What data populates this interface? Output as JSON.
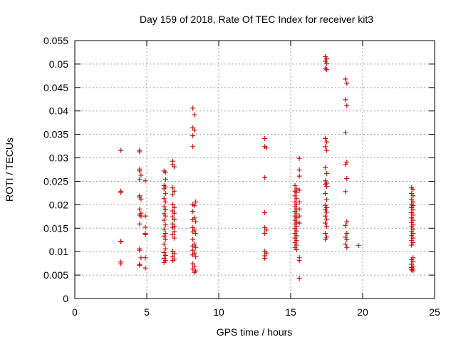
{
  "chart_data": {
    "type": "scatter",
    "title": "Day 159 of 2018, Rate Of TEC Index for receiver kit3",
    "xlabel": "GPS time / hours",
    "ylabel": "ROTI / TECUs",
    "xlim": [
      0,
      25
    ],
    "ylim": [
      0,
      0.055
    ],
    "xticks": [
      0,
      5,
      10,
      15,
      20,
      25
    ],
    "xtick_labels": [
      "0",
      "5",
      "10",
      "15",
      "20",
      "25"
    ],
    "yticks": [
      0,
      0.005,
      0.01,
      0.015,
      0.02,
      0.025,
      0.03,
      0.035,
      0.04,
      0.045,
      0.05,
      0.055
    ],
    "ytick_labels": [
      "0",
      "0.005",
      "0.01",
      "0.015",
      "0.02",
      "0.025",
      "0.03",
      "0.035",
      "0.04",
      "0.045",
      "0.05",
      "0.055"
    ],
    "grid": true,
    "marker": "+",
    "marker_color": "#cc0000",
    "series": [
      {
        "name": "kit3",
        "points": [
          [
            3.2,
            0.0316
          ],
          [
            3.2,
            0.0229
          ],
          [
            3.2,
            0.0226
          ],
          [
            3.2,
            0.0122
          ],
          [
            3.2,
            0.0121
          ],
          [
            3.2,
            0.0078
          ],
          [
            3.2,
            0.0074
          ],
          [
            4.5,
            0.0316
          ],
          [
            4.5,
            0.0313
          ],
          [
            4.5,
            0.0276
          ],
          [
            4.5,
            0.0272
          ],
          [
            4.6,
            0.0263
          ],
          [
            4.5,
            0.0254
          ],
          [
            4.5,
            0.0219
          ],
          [
            4.5,
            0.0216
          ],
          [
            4.6,
            0.0212
          ],
          [
            4.5,
            0.0191
          ],
          [
            4.6,
            0.0182
          ],
          [
            4.5,
            0.0178
          ],
          [
            4.6,
            0.0176
          ],
          [
            4.5,
            0.0159
          ],
          [
            4.5,
            0.0106
          ],
          [
            4.5,
            0.0103
          ],
          [
            4.6,
            0.0087
          ],
          [
            4.5,
            0.0073
          ],
          [
            4.5,
            0.0071
          ],
          [
            4.9,
            0.0251
          ],
          [
            4.9,
            0.0176
          ],
          [
            4.9,
            0.0152
          ],
          [
            4.9,
            0.0139
          ],
          [
            4.9,
            0.0136
          ],
          [
            4.9,
            0.0087
          ],
          [
            4.9,
            0.0065
          ],
          [
            6.2,
            0.0272
          ],
          [
            6.3,
            0.0269
          ],
          [
            6.3,
            0.0254
          ],
          [
            6.2,
            0.0241
          ],
          [
            6.3,
            0.0238
          ],
          [
            6.2,
            0.0234
          ],
          [
            6.3,
            0.0224
          ],
          [
            6.2,
            0.0213
          ],
          [
            6.3,
            0.0206
          ],
          [
            6.2,
            0.0196
          ],
          [
            6.3,
            0.0189
          ],
          [
            6.2,
            0.0181
          ],
          [
            6.3,
            0.0176
          ],
          [
            6.2,
            0.0167
          ],
          [
            6.3,
            0.0157
          ],
          [
            6.2,
            0.0148
          ],
          [
            6.3,
            0.0139
          ],
          [
            6.2,
            0.0133
          ],
          [
            6.3,
            0.0126
          ],
          [
            6.2,
            0.0116
          ],
          [
            6.3,
            0.0106
          ],
          [
            6.2,
            0.0098
          ],
          [
            6.3,
            0.0092
          ],
          [
            6.2,
            0.0086
          ],
          [
            6.3,
            0.0081
          ],
          [
            6.2,
            0.0077
          ],
          [
            6.8,
            0.0293
          ],
          [
            6.8,
            0.0286
          ],
          [
            6.9,
            0.0281
          ],
          [
            6.8,
            0.0236
          ],
          [
            6.9,
            0.0229
          ],
          [
            6.8,
            0.0222
          ],
          [
            6.8,
            0.0201
          ],
          [
            6.9,
            0.0194
          ],
          [
            6.8,
            0.0187
          ],
          [
            6.9,
            0.0182
          ],
          [
            6.8,
            0.0174
          ],
          [
            6.9,
            0.0168
          ],
          [
            6.8,
            0.0159
          ],
          [
            6.9,
            0.0154
          ],
          [
            6.8,
            0.0151
          ],
          [
            6.9,
            0.0143
          ],
          [
            6.8,
            0.0136
          ],
          [
            6.9,
            0.0129
          ],
          [
            6.8,
            0.0101
          ],
          [
            6.9,
            0.0096
          ],
          [
            6.8,
            0.0089
          ],
          [
            6.9,
            0.0084
          ],
          [
            6.8,
            0.0081
          ],
          [
            8.2,
            0.0406
          ],
          [
            8.3,
            0.0392
          ],
          [
            8.2,
            0.0364
          ],
          [
            8.3,
            0.0359
          ],
          [
            8.2,
            0.0347
          ],
          [
            8.2,
            0.0324
          ],
          [
            8.2,
            0.0201
          ],
          [
            8.3,
            0.0198
          ],
          [
            8.4,
            0.0206
          ],
          [
            8.2,
            0.0186
          ],
          [
            8.3,
            0.0172
          ],
          [
            8.2,
            0.0168
          ],
          [
            8.4,
            0.0164
          ],
          [
            8.2,
            0.0151
          ],
          [
            8.3,
            0.0146
          ],
          [
            8.2,
            0.0142
          ],
          [
            8.4,
            0.0139
          ],
          [
            8.2,
            0.0126
          ],
          [
            8.3,
            0.0116
          ],
          [
            8.2,
            0.0112
          ],
          [
            8.4,
            0.0109
          ],
          [
            8.2,
            0.0103
          ],
          [
            8.3,
            0.0097
          ],
          [
            8.2,
            0.0093
          ],
          [
            8.4,
            0.0089
          ],
          [
            8.2,
            0.0074
          ],
          [
            8.3,
            0.0068
          ],
          [
            8.2,
            0.0063
          ],
          [
            8.4,
            0.0059
          ],
          [
            8.3,
            0.0056
          ],
          [
            13.2,
            0.0341
          ],
          [
            13.2,
            0.0324
          ],
          [
            13.3,
            0.0321
          ],
          [
            13.2,
            0.0258
          ],
          [
            13.2,
            0.0183
          ],
          [
            13.2,
            0.0151
          ],
          [
            13.3,
            0.0146
          ],
          [
            13.2,
            0.0139
          ],
          [
            13.2,
            0.0101
          ],
          [
            13.3,
            0.0097
          ],
          [
            13.2,
            0.0091
          ],
          [
            13.2,
            0.0086
          ],
          [
            15.3,
            0.0241
          ],
          [
            15.4,
            0.0234
          ],
          [
            15.3,
            0.0229
          ],
          [
            15.4,
            0.0226
          ],
          [
            15.3,
            0.0219
          ],
          [
            15.4,
            0.0213
          ],
          [
            15.3,
            0.0206
          ],
          [
            15.4,
            0.0201
          ],
          [
            15.3,
            0.0196
          ],
          [
            15.4,
            0.0191
          ],
          [
            15.3,
            0.0186
          ],
          [
            15.4,
            0.0181
          ],
          [
            15.3,
            0.0176
          ],
          [
            15.4,
            0.0172
          ],
          [
            15.3,
            0.0167
          ],
          [
            15.4,
            0.0163
          ],
          [
            15.3,
            0.0159
          ],
          [
            15.4,
            0.0154
          ],
          [
            15.3,
            0.0149
          ],
          [
            15.4,
            0.0144
          ],
          [
            15.3,
            0.0139
          ],
          [
            15.4,
            0.0134
          ],
          [
            15.3,
            0.0129
          ],
          [
            15.4,
            0.0124
          ],
          [
            15.3,
            0.0119
          ],
          [
            15.4,
            0.0114
          ],
          [
            15.3,
            0.0109
          ],
          [
            15.4,
            0.0104
          ],
          [
            15.6,
            0.0299
          ],
          [
            15.6,
            0.0274
          ],
          [
            15.6,
            0.0261
          ],
          [
            15.6,
            0.0231
          ],
          [
            15.6,
            0.0206
          ],
          [
            15.6,
            0.0191
          ],
          [
            15.6,
            0.0176
          ],
          [
            15.6,
            0.0161
          ],
          [
            15.6,
            0.0087
          ],
          [
            15.6,
            0.0081
          ],
          [
            15.6,
            0.0043
          ],
          [
            17.4,
            0.0516
          ],
          [
            17.5,
            0.0511
          ],
          [
            17.4,
            0.0506
          ],
          [
            17.5,
            0.0501
          ],
          [
            17.4,
            0.0491
          ],
          [
            17.5,
            0.0488
          ],
          [
            17.4,
            0.0341
          ],
          [
            17.5,
            0.0334
          ],
          [
            17.4,
            0.0324
          ],
          [
            17.5,
            0.0316
          ],
          [
            17.4,
            0.0279
          ],
          [
            17.5,
            0.0267
          ],
          [
            17.4,
            0.0251
          ],
          [
            17.5,
            0.0246
          ],
          [
            17.4,
            0.0243
          ],
          [
            17.5,
            0.0239
          ],
          [
            17.4,
            0.0224
          ],
          [
            17.5,
            0.0211
          ],
          [
            17.4,
            0.0199
          ],
          [
            17.5,
            0.0194
          ],
          [
            17.4,
            0.0189
          ],
          [
            17.5,
            0.0184
          ],
          [
            17.4,
            0.0176
          ],
          [
            17.5,
            0.0169
          ],
          [
            17.4,
            0.0161
          ],
          [
            17.5,
            0.0154
          ],
          [
            17.4,
            0.0139
          ],
          [
            17.5,
            0.0131
          ],
          [
            17.4,
            0.0126
          ],
          [
            18.8,
            0.0468
          ],
          [
            18.9,
            0.0459
          ],
          [
            18.8,
            0.0424
          ],
          [
            18.9,
            0.0411
          ],
          [
            18.8,
            0.0354
          ],
          [
            18.9,
            0.0291
          ],
          [
            18.8,
            0.0286
          ],
          [
            18.9,
            0.0256
          ],
          [
            18.8,
            0.0228
          ],
          [
            18.9,
            0.0164
          ],
          [
            18.8,
            0.0156
          ],
          [
            18.9,
            0.0139
          ],
          [
            18.8,
            0.0131
          ],
          [
            18.9,
            0.0126
          ],
          [
            18.8,
            0.0116
          ],
          [
            18.9,
            0.0109
          ],
          [
            19.7,
            0.0113
          ],
          [
            23.4,
            0.0236
          ],
          [
            23.5,
            0.0233
          ],
          [
            23.4,
            0.0224
          ],
          [
            23.5,
            0.0219
          ],
          [
            23.4,
            0.0211
          ],
          [
            23.5,
            0.0206
          ],
          [
            23.4,
            0.0201
          ],
          [
            23.5,
            0.0198
          ],
          [
            23.4,
            0.0194
          ],
          [
            23.5,
            0.0189
          ],
          [
            23.4,
            0.0183
          ],
          [
            23.5,
            0.0178
          ],
          [
            23.4,
            0.0172
          ],
          [
            23.5,
            0.0167
          ],
          [
            23.4,
            0.0162
          ],
          [
            23.5,
            0.0157
          ],
          [
            23.4,
            0.0153
          ],
          [
            23.5,
            0.0148
          ],
          [
            23.4,
            0.0143
          ],
          [
            23.5,
            0.0139
          ],
          [
            23.4,
            0.0134
          ],
          [
            23.5,
            0.0129
          ],
          [
            23.4,
            0.0124
          ],
          [
            23.5,
            0.0119
          ],
          [
            23.4,
            0.0114
          ],
          [
            23.5,
            0.0087
          ],
          [
            23.4,
            0.0083
          ],
          [
            23.5,
            0.0079
          ],
          [
            23.4,
            0.0073
          ],
          [
            23.5,
            0.0069
          ],
          [
            23.4,
            0.0066
          ],
          [
            23.5,
            0.0063
          ],
          [
            23.4,
            0.0061
          ],
          [
            23.5,
            0.0059
          ]
        ]
      }
    ]
  }
}
